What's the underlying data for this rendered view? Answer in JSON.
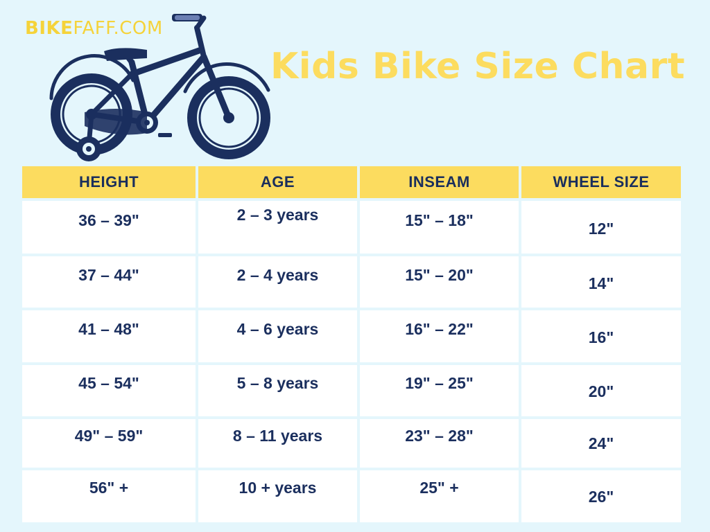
{
  "brand": {
    "part1": "BIKE",
    "part2": "FAFF",
    "part3": ".COM"
  },
  "title": "Kids Bike Size Chart",
  "table": {
    "headers": [
      "HEIGHT",
      "AGE",
      "INSEAM",
      "WHEEL SIZE"
    ],
    "rows": [
      [
        "36 – 39\"",
        "2 – 3 years",
        "15\" – 18\"",
        "12\""
      ],
      [
        "37 – 44\"",
        "2 – 4 years",
        "15\" – 20\"",
        "14\""
      ],
      [
        "41 – 48\"",
        "4 – 6 years",
        "16\" – 22\"",
        "16\""
      ],
      [
        "45 – 54\"",
        "5 – 8 years",
        "19\" – 25\"",
        "20\""
      ],
      [
        "49\" – 59\"",
        "8 – 11 years",
        "23\" – 28\"",
        "24\""
      ],
      [
        "56\" +",
        "10 + years",
        "25\" +",
        "26\""
      ]
    ]
  },
  "colors": {
    "background": "#e4f6fc",
    "accent": "#fcdc5f",
    "navy": "#1b2f5e"
  },
  "icons": {
    "illustration": "kids-bike-with-training-wheels"
  }
}
